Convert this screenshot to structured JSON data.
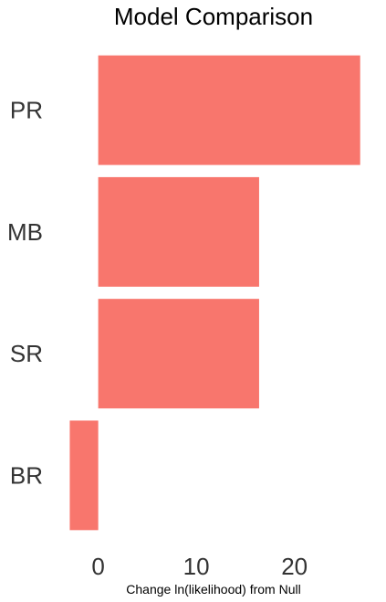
{
  "chart_data": {
    "type": "bar",
    "orientation": "horizontal",
    "title": "Model Comparison",
    "xlabel": "Change ln(likelihood) from Null",
    "ylabel": "",
    "categories": [
      "PR",
      "MB",
      "SR",
      "BR"
    ],
    "values": [
      26.7,
      16.4,
      16.4,
      -2.9
    ],
    "xlim": [
      -3.5,
      27.1
    ],
    "xticks": [
      0,
      10,
      20
    ],
    "bar_color": "#F8766D",
    "grid": false,
    "legend": "none"
  }
}
